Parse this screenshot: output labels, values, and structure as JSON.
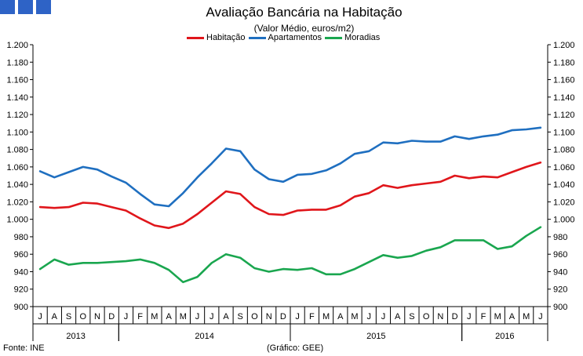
{
  "header": {
    "title": "Avaliação Bancária na Habitação",
    "subtitle": "(Valor Médio, euros/m2)"
  },
  "footer": {
    "source": "Fonte: INE",
    "credit": "(Gráfico: GEE)"
  },
  "chart_data": {
    "type": "line",
    "title": "Avaliação Bancária na Habitação",
    "subtitle": "(Valor Médio, euros/m2)",
    "ylim": [
      900,
      1200
    ],
    "yticks": [
      "900",
      "920",
      "940",
      "960",
      "980",
      "1.000",
      "1.020",
      "1.040",
      "1.060",
      "1.080",
      "1.100",
      "1.120",
      "1.140",
      "1.160",
      "1.180",
      "1.200"
    ],
    "categories": [
      "J",
      "A",
      "S",
      "O",
      "N",
      "D",
      "J",
      "F",
      "M",
      "A",
      "M",
      "J",
      "J",
      "A",
      "S",
      "O",
      "N",
      "D",
      "J",
      "F",
      "M",
      "A",
      "M",
      "J",
      "J",
      "A",
      "S",
      "O",
      "N",
      "D",
      "J",
      "F",
      "M",
      "A",
      "M",
      "J"
    ],
    "years": [
      {
        "label": "2013",
        "start": 0,
        "end": 6
      },
      {
        "label": "2014",
        "start": 6,
        "end": 18
      },
      {
        "label": "2015",
        "start": 18,
        "end": 30
      },
      {
        "label": "2016",
        "start": 30,
        "end": 36
      }
    ],
    "legend_position": "top-center",
    "series": [
      {
        "name": "Habitação",
        "color": "#e0161b",
        "values": [
          1014,
          1013,
          1014,
          1019,
          1018,
          1014,
          1010,
          1001,
          993,
          990,
          995,
          1006,
          1019,
          1032,
          1029,
          1014,
          1006,
          1005,
          1010,
          1011,
          1011,
          1016,
          1026,
          1030,
          1039,
          1036,
          1039,
          1041,
          1043,
          1050,
          1047,
          1049,
          1048,
          1054,
          1060,
          1065
        ]
      },
      {
        "name": "Apartamentos",
        "color": "#1f6fc0",
        "values": [
          1055,
          1048,
          1054,
          1060,
          1057,
          1049,
          1042,
          1029,
          1017,
          1015,
          1030,
          1048,
          1064,
          1081,
          1078,
          1057,
          1046,
          1043,
          1051,
          1052,
          1056,
          1064,
          1075,
          1078,
          1088,
          1087,
          1090,
          1089,
          1089,
          1095,
          1092,
          1095,
          1097,
          1102,
          1103,
          1105
        ]
      },
      {
        "name": "Moradias",
        "color": "#1aa64f",
        "values": [
          943,
          954,
          948,
          950,
          950,
          951,
          952,
          954,
          950,
          942,
          928,
          934,
          950,
          960,
          956,
          944,
          940,
          943,
          942,
          944,
          937,
          937,
          943,
          951,
          959,
          956,
          958,
          964,
          968,
          976,
          976,
          976,
          966,
          969,
          981,
          991
        ]
      }
    ]
  },
  "colors": {
    "logo": "#2e63c6",
    "axis": "#000000"
  }
}
